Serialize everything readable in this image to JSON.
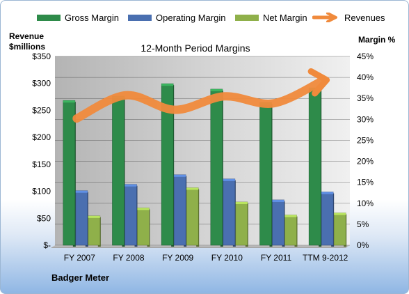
{
  "chart_data": {
    "type": "bar",
    "title": "12-Month Period Margins",
    "ylabel": "Revenue $millions",
    "y2label": "Margin %",
    "categories": [
      "FY 2007",
      "FY 2008",
      "FY 2009",
      "FY 2010",
      "FY 2011",
      "TTM 9-2012"
    ],
    "ylim": [
      0,
      350
    ],
    "y2lim": [
      0,
      45
    ],
    "y_ticks": [
      "$-",
      "$50",
      "$100",
      "$150",
      "$200",
      "$250",
      "$300",
      "$350"
    ],
    "y2_ticks": [
      "0%",
      "5%",
      "10%",
      "15%",
      "20%",
      "25%",
      "30%",
      "35%",
      "40%",
      "45%"
    ],
    "series": [
      {
        "name": "Gross Margin",
        "axis": "right",
        "color": "#2e8b4a",
        "values": [
          34.5,
          35.5,
          38.5,
          37.2,
          34.0,
          37.5
        ]
      },
      {
        "name": "Operating Margin",
        "axis": "right",
        "color": "#4a6fb0",
        "values": [
          13.0,
          14.5,
          16.8,
          15.8,
          10.8,
          12.7
        ]
      },
      {
        "name": "Net Margin",
        "axis": "right",
        "color": "#8fb04a",
        "values": [
          7.0,
          8.9,
          13.7,
          10.3,
          7.2,
          7.7
        ]
      },
      {
        "name": "Revenues",
        "type": "line",
        "axis": "left",
        "color": "#f08a3c",
        "values": [
          235,
          278,
          251,
          276,
          263,
          305
        ]
      }
    ],
    "grid": true,
    "legend": "top"
  },
  "company": "Badger Meter"
}
